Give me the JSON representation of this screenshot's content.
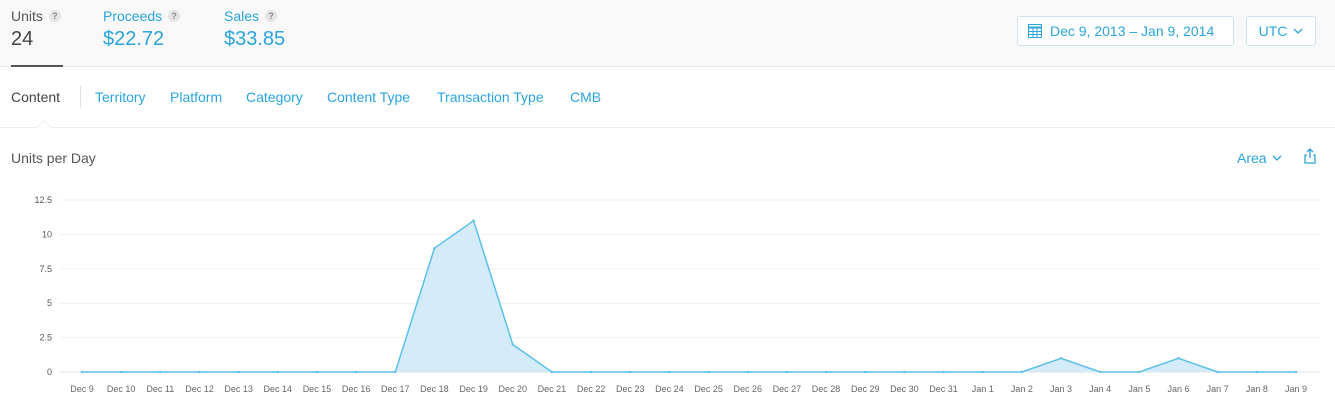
{
  "metrics": {
    "units": {
      "label": "Units",
      "value": "24"
    },
    "proceeds": {
      "label": "Proceeds",
      "value": "$22.72"
    },
    "sales": {
      "label": "Sales",
      "value": "$33.85"
    },
    "help_glyph": "?"
  },
  "date_range": {
    "label": "Dec 9, 2013 – Jan 9, 2014",
    "icon": "calendar-icon"
  },
  "timezone": {
    "label": "UTC",
    "icon": "chevron-down-icon"
  },
  "tabs": [
    {
      "label": "Content",
      "active": true
    },
    {
      "label": "Territory"
    },
    {
      "label": "Platform"
    },
    {
      "label": "Category"
    },
    {
      "label": "Content Type"
    },
    {
      "label": "Transaction Type"
    },
    {
      "label": "CMB"
    }
  ],
  "chart_header": {
    "title": "Units per Day",
    "type_label": "Area",
    "share_icon": "share-icon"
  },
  "colors": {
    "accent": "#2aa4dc",
    "area_fill": "#d4ecf9",
    "area_line": "#5bc0ea"
  },
  "chart_data": {
    "type": "area",
    "title": "Units per Day",
    "x": [
      "Dec 9",
      "Dec 10",
      "Dec 11",
      "Dec 12",
      "Dec 13",
      "Dec 14",
      "Dec 15",
      "Dec 16",
      "Dec 17",
      "Dec 18",
      "Dec 19",
      "Dec 20",
      "Dec 21",
      "Dec 22",
      "Dec 23",
      "Dec 24",
      "Dec 25",
      "Dec 26",
      "Dec 27",
      "Dec 28",
      "Dec 29",
      "Dec 30",
      "Dec 31",
      "Jan 1",
      "Jan 2",
      "Jan 3",
      "Jan 4",
      "Jan 5",
      "Jan 6",
      "Jan 7",
      "Jan 8",
      "Jan 9"
    ],
    "values": [
      0,
      0,
      0,
      0,
      0,
      0,
      0,
      0,
      0,
      9,
      11,
      2,
      0,
      0,
      0,
      0,
      0,
      0,
      0,
      0,
      0,
      0,
      0,
      0,
      0,
      1,
      0,
      0,
      1,
      0,
      0,
      0
    ],
    "y_ticks": [
      "0",
      "2.5",
      "5",
      "7.5",
      "10",
      "12.5"
    ],
    "ylim": [
      0,
      12.5
    ],
    "grid": true,
    "legend": "none"
  }
}
